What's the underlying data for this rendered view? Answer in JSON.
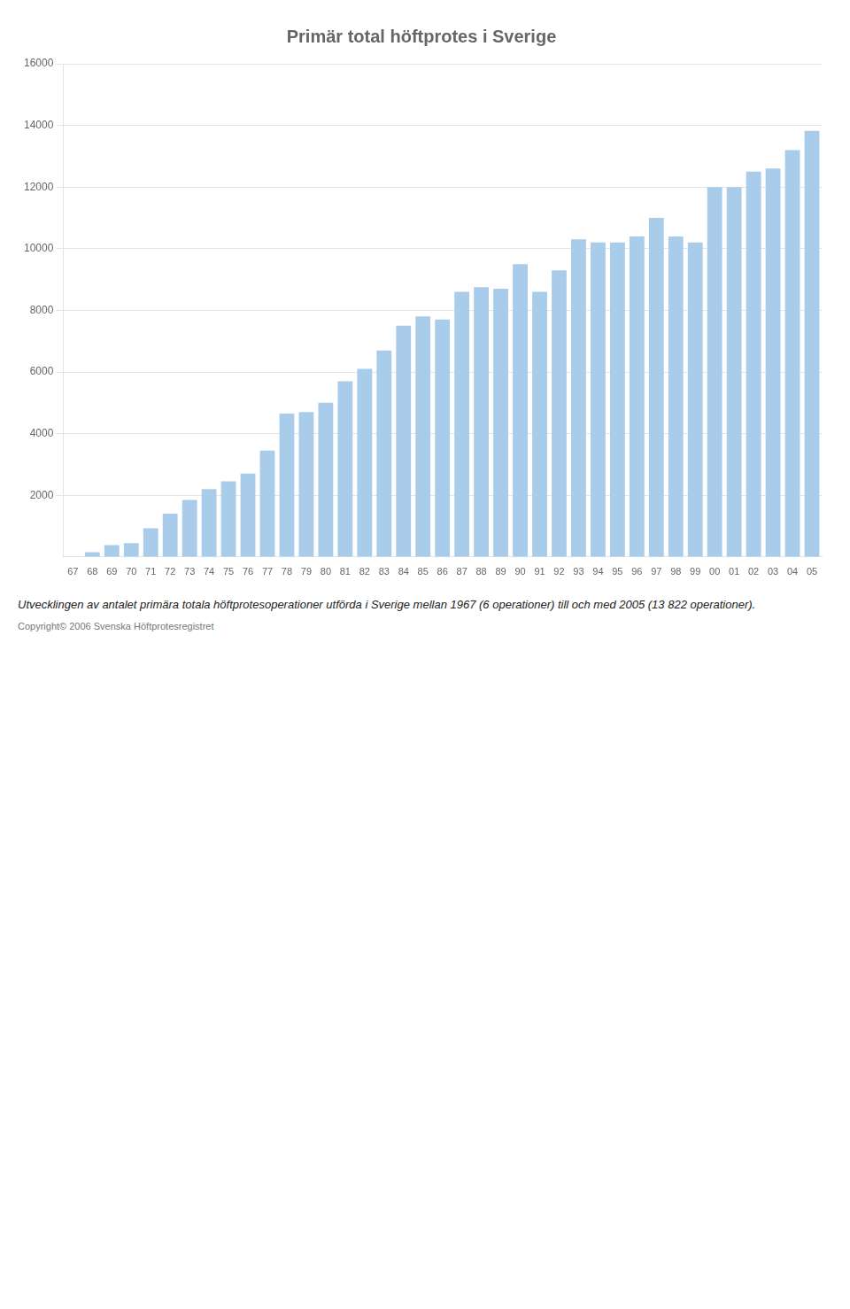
{
  "chart_data": {
    "type": "bar",
    "title": "Primär total höftprotes i Sverige",
    "categories": [
      "67",
      "68",
      "69",
      "70",
      "71",
      "72",
      "73",
      "74",
      "75",
      "76",
      "77",
      "78",
      "79",
      "80",
      "81",
      "82",
      "83",
      "84",
      "85",
      "86",
      "87",
      "88",
      "89",
      "90",
      "91",
      "92",
      "93",
      "94",
      "95",
      "96",
      "97",
      "98",
      "99",
      "00",
      "01",
      "02",
      "03",
      "04",
      "05"
    ],
    "values": [
      6,
      150,
      380,
      450,
      930,
      1400,
      1850,
      2200,
      2450,
      2700,
      3450,
      4650,
      4700,
      5000,
      5700,
      6100,
      6700,
      7500,
      7800,
      7700,
      8600,
      8750,
      8700,
      9500,
      8600,
      9300,
      10300,
      10200,
      10200,
      10400,
      11000,
      10400,
      10200,
      12000,
      12000,
      12500,
      12600,
      13200,
      13822
    ],
    "color": "#A8CCEA",
    "ylim": [
      0,
      16000
    ],
    "yticks": [
      2000,
      4000,
      6000,
      8000,
      10000,
      12000,
      14000,
      16000
    ],
    "grid": true,
    "annotations": [
      "Utvecklingen av antalet primära totala höftprotesoperationer utförda i Sverige mellan 1967 (6 operationer) till och med 2005 (13 822 operationer).",
      "Copyright© 2006 Svenska Höftprotesregistret"
    ]
  }
}
